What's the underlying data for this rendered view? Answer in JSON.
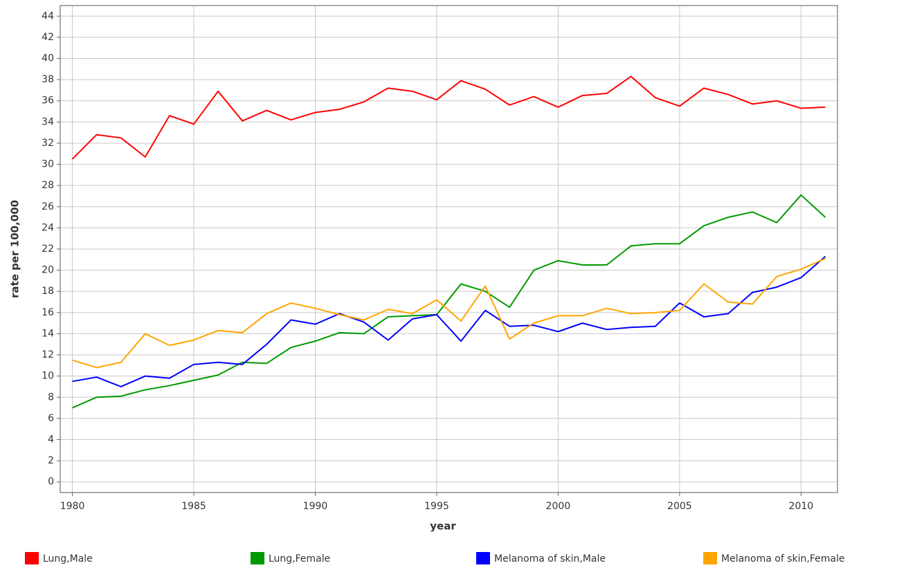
{
  "chart_data": {
    "type": "line",
    "x_label": "year",
    "y_label": "rate per 100,000",
    "x": [
      1980,
      1981,
      1982,
      1983,
      1984,
      1985,
      1986,
      1987,
      1988,
      1989,
      1990,
      1991,
      1992,
      1993,
      1994,
      1995,
      1996,
      1997,
      1998,
      1999,
      2000,
      2001,
      2002,
      2003,
      2004,
      2005,
      2006,
      2007,
      2008,
      2009,
      2010,
      2011
    ],
    "series": [
      {
        "name": "Lung,Male",
        "color": "#ff0000",
        "values": [
          30.5,
          32.8,
          32.5,
          30.7,
          34.6,
          33.8,
          36.9,
          34.1,
          35.1,
          34.2,
          34.9,
          35.2,
          35.9,
          37.2,
          36.9,
          36.1,
          37.9,
          37.1,
          35.6,
          36.4,
          35.4,
          36.5,
          36.7,
          38.3,
          36.3,
          35.5,
          37.2,
          36.6,
          35.7,
          36.0,
          35.3,
          35.4
        ]
      },
      {
        "name": "Lung,Female",
        "color": "#009900",
        "values": [
          7.0,
          8.0,
          8.1,
          8.7,
          9.1,
          9.6,
          10.1,
          11.3,
          11.2,
          12.7,
          13.3,
          14.1,
          14.0,
          15.6,
          15.7,
          15.8,
          18.7,
          18.0,
          16.5,
          20.0,
          20.9,
          20.5,
          20.5,
          22.3,
          22.5,
          22.5,
          24.2,
          25.0,
          25.5,
          24.5,
          27.1,
          25.0
        ]
      },
      {
        "name": "Melanoma of skin,Male",
        "color": "#0000ff",
        "values": [
          9.5,
          9.9,
          9.0,
          10.0,
          9.8,
          11.1,
          11.3,
          11.1,
          13.0,
          15.3,
          14.9,
          15.9,
          15.1,
          13.4,
          15.4,
          15.8,
          13.3,
          16.2,
          14.7,
          14.8,
          14.2,
          15.0,
          14.4,
          14.6,
          14.7,
          16.9,
          15.6,
          15.9,
          17.9,
          18.4,
          19.3,
          21.3
        ]
      },
      {
        "name": "Melanoma of skin,Female",
        "color": "#ffa500",
        "values": [
          11.5,
          10.8,
          11.3,
          14.0,
          12.9,
          13.4,
          14.3,
          14.1,
          15.9,
          16.9,
          16.4,
          15.8,
          15.3,
          16.3,
          15.9,
          17.2,
          15.2,
          18.5,
          13.5,
          15.0,
          15.7,
          15.7,
          16.4,
          15.9,
          16.0,
          16.2,
          18.7,
          17.0,
          16.8,
          19.4,
          20.1,
          21.1
        ]
      }
    ],
    "xlim": [
      1979.5,
      2011.5
    ],
    "xticks": [
      1980,
      1985,
      1990,
      1995,
      2000,
      2005,
      2010
    ],
    "ylim": [
      -1,
      45
    ],
    "yticks": [
      0,
      2,
      4,
      6,
      8,
      10,
      12,
      14,
      16,
      18,
      20,
      22,
      24,
      26,
      28,
      30,
      32,
      34,
      36,
      38,
      40,
      42,
      44
    ],
    "grid": true,
    "legend": "bottom"
  }
}
